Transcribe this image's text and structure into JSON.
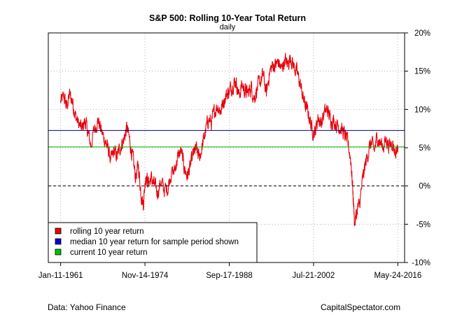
{
  "chart_data": {
    "type": "line",
    "title": "S&P 500: Rolling 10-Year Total Return",
    "subtitle": "daily",
    "x_tick_labels": [
      "Jan-11-1961",
      "Nov-14-1974",
      "Sep-17-1988",
      "Jul-21-2002",
      "May-24-2016"
    ],
    "x_tick_years": [
      1961.03,
      1974.87,
      1988.71,
      2002.55,
      2016.39
    ],
    "xlim": [
      1959.0,
      2017.5
    ],
    "ylim": [
      -10,
      20
    ],
    "y_tick_values": [
      -10,
      -5,
      0,
      5,
      10,
      15,
      20
    ],
    "y_tick_labels": [
      "-10%",
      "-5%",
      "0%",
      "5%",
      "10%",
      "15%",
      "20%"
    ],
    "grid": true,
    "series": [
      {
        "name": "rolling 10 year return",
        "color": "#e8000b",
        "x": [
          1961.0,
          1961.6,
          1962.0,
          1962.5,
          1963.0,
          1963.4,
          1963.9,
          1964.5,
          1965.0,
          1965.5,
          1966.0,
          1966.6,
          1967.2,
          1967.8,
          1968.3,
          1968.8,
          1969.3,
          1969.8,
          1970.3,
          1970.9,
          1971.4,
          1971.9,
          1972.4,
          1972.9,
          1973.3,
          1973.8,
          1974.2,
          1974.6,
          1975.0,
          1975.4,
          1975.9,
          1976.4,
          1976.9,
          1977.5,
          1978.0,
          1978.6,
          1979.1,
          1979.7,
          1980.2,
          1980.8,
          1981.3,
          1981.8,
          1982.3,
          1982.8,
          1983.3,
          1983.8,
          1984.3,
          1984.8,
          1985.3,
          1985.8,
          1986.3,
          1986.8,
          1987.3,
          1987.8,
          1988.3,
          1988.8,
          1989.3,
          1989.8,
          1990.3,
          1990.8,
          1991.3,
          1991.8,
          1992.3,
          1992.8,
          1993.3,
          1993.8,
          1994.3,
          1994.8,
          1995.3,
          1995.8,
          1996.3,
          1996.8,
          1997.3,
          1997.8,
          1998.3,
          1998.8,
          1999.3,
          1999.8,
          2000.3,
          2000.8,
          2001.3,
          2001.8,
          2002.3,
          2002.8,
          2003.3,
          2003.8,
          2004.3,
          2004.8,
          2005.3,
          2005.8,
          2006.3,
          2006.8,
          2007.3,
          2007.8,
          2008.3,
          2008.7,
          2009.0,
          2009.3,
          2009.7,
          2010.1,
          2010.6,
          2011.0,
          2011.5,
          2012.0,
          2012.5,
          2013.0,
          2013.5,
          2014.0,
          2014.5,
          2015.0,
          2015.5,
          2016.0,
          2016.4
        ],
        "y": [
          11.0,
          11.6,
          10.3,
          11.9,
          11.0,
          9.3,
          8.2,
          7.4,
          8.5,
          7.0,
          5.3,
          7.6,
          8.6,
          6.9,
          6.0,
          4.8,
          3.3,
          4.5,
          3.8,
          5.3,
          6.1,
          7.6,
          5.8,
          3.5,
          1.2,
          2.6,
          -0.8,
          -2.4,
          1.6,
          0.4,
          1.0,
          0.1,
          -0.9,
          0.6,
          -0.5,
          -0.3,
          1.6,
          1.9,
          3.6,
          4.6,
          2.5,
          1.3,
          2.4,
          4.2,
          4.8,
          3.6,
          5.3,
          7.0,
          8.8,
          8.2,
          9.8,
          10.5,
          9.8,
          11.2,
          12.0,
          12.5,
          13.3,
          13.8,
          11.8,
          13.2,
          12.4,
          12.1,
          13.0,
          11.5,
          12.8,
          13.6,
          14.5,
          12.0,
          14.8,
          15.7,
          15.8,
          16.2,
          15.2,
          16.5,
          15.9,
          16.9,
          15.6,
          14.9,
          13.5,
          11.6,
          10.3,
          9.2,
          7.4,
          7.0,
          9.0,
          8.2,
          9.5,
          10.0,
          8.8,
          8.6,
          8.1,
          7.8,
          7.2,
          6.5,
          5.2,
          3.2,
          -0.6,
          -4.9,
          -3.2,
          -2.4,
          0.7,
          2.6,
          4.3,
          5.7,
          4.6,
          6.4,
          5.6,
          5.2,
          6.1,
          5.2,
          5.8,
          4.3,
          5.1
        ]
      }
    ],
    "reference_lines": [
      {
        "name": "median 10 year return for sample period shown",
        "value": 7.25,
        "color": "#00008b",
        "style": "solid"
      },
      {
        "name": "current 10 year return",
        "value": 5.1,
        "color": "#00b000",
        "style": "solid"
      },
      {
        "name": "zero",
        "value": 0,
        "color": "#000000",
        "style": "dashed"
      }
    ],
    "legend": {
      "placement": "bottom-left",
      "items": [
        {
          "label": "rolling 10 year return",
          "color": "#e8000b"
        },
        {
          "label": "median 10 year return for sample period shown",
          "color": "#0000dd"
        },
        {
          "label": "current 10 year return",
          "color": "#00c000"
        }
      ]
    }
  },
  "footer": {
    "source": "Data: Yahoo Finance",
    "brand": "CapitalSpectator.com"
  }
}
